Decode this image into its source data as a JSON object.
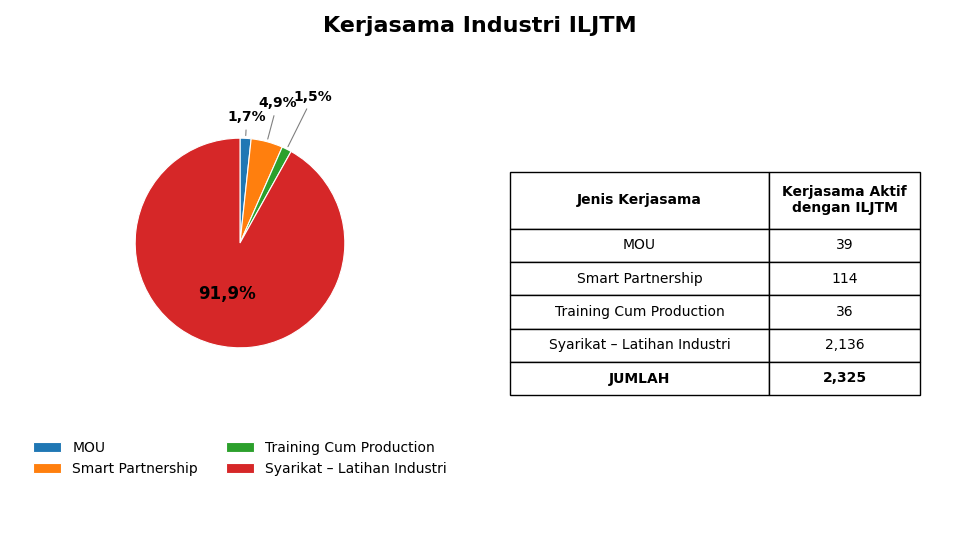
{
  "chart_data": {
    "type": "pie",
    "title": "Kerjasama Industri ILJTM",
    "categories": [
      "MOU",
      "Smart Partnership",
      "Training Cum Production",
      "Syarikat – Latihan Industri"
    ],
    "values": [
      1.7,
      4.9,
      1.5,
      91.9
    ],
    "value_labels": [
      "1,7%",
      "4,9%",
      "1,5%",
      "91,9%"
    ],
    "data_labels": true,
    "legend": "upper center",
    "table": {
      "headers": [
        "Jenis Kerjasama",
        "Kerjasama Aktif\ndengan ILJTM"
      ],
      "rows": [
        [
          "MOU",
          "39"
        ],
        [
          "Smart Partnership",
          "114"
        ],
        [
          "Training Cum Production",
          "36"
        ],
        [
          "Syarikat – Latihan Industri",
          "2,136"
        ]
      ],
      "total": [
        "JUMLAH",
        "2,325"
      ]
    }
  }
}
